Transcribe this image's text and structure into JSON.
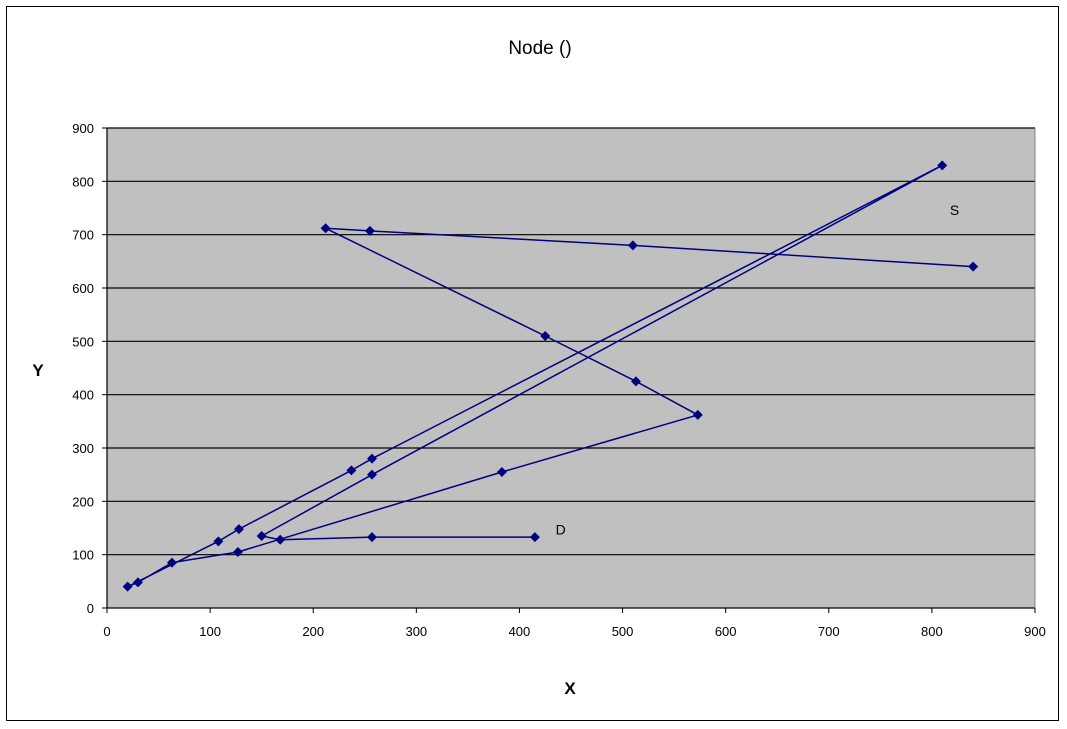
{
  "chart_data": {
    "type": "line",
    "title": "Node ()",
    "xlabel": "X",
    "ylabel": "Y",
    "xlim": [
      0,
      900
    ],
    "ylim": [
      0,
      900
    ],
    "x_ticks": [
      0,
      100,
      200,
      300,
      400,
      500,
      600,
      700,
      800,
      900
    ],
    "y_ticks": [
      0,
      100,
      200,
      300,
      400,
      500,
      600,
      700,
      800,
      900
    ],
    "grid": "horizontal",
    "legend": "none",
    "plot_background": "#c0c0c0",
    "series_color": "#000080",
    "series": [
      {
        "x": [
          840,
          510,
          255,
          212,
          425,
          513,
          573,
          383,
          127,
          63,
          30,
          20,
          108,
          128,
          237,
          257,
          810,
          257,
          150,
          168,
          257,
          415
        ],
        "y": [
          640,
          680,
          707,
          712,
          510,
          425,
          362,
          255,
          105,
          85,
          48,
          40,
          125,
          148,
          258,
          280,
          830,
          250,
          135,
          128,
          133,
          133
        ]
      }
    ],
    "annotations": [
      {
        "text": "S",
        "x": 822,
        "y": 737
      },
      {
        "text": "D",
        "x": 440,
        "y": 138
      }
    ]
  }
}
